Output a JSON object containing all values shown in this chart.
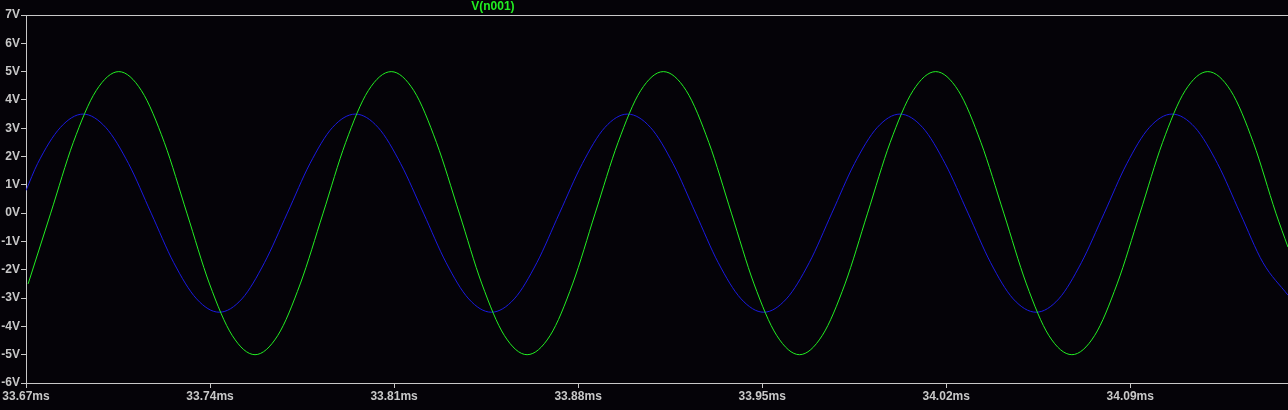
{
  "chart_data": {
    "type": "line",
    "legend": "top",
    "xlim": [
      33.67,
      34.15
    ],
    "ylim": [
      -6,
      7
    ],
    "xticks": [
      {
        "value": 33.67,
        "label": "33.67ms"
      },
      {
        "value": 33.74,
        "label": "33.74ms"
      },
      {
        "value": 33.81,
        "label": "33.81ms"
      },
      {
        "value": 33.88,
        "label": "33.88ms"
      },
      {
        "value": 33.95,
        "label": "33.95ms"
      },
      {
        "value": 34.02,
        "label": "34.02ms"
      },
      {
        "value": 34.09,
        "label": "34.09ms"
      }
    ],
    "yticks": [
      {
        "value": 7,
        "label": "7V"
      },
      {
        "value": 6,
        "label": "6V"
      },
      {
        "value": 5,
        "label": "5V"
      },
      {
        "value": 4,
        "label": "4V"
      },
      {
        "value": 3,
        "label": "3V"
      },
      {
        "value": 2,
        "label": "2V"
      },
      {
        "value": 1,
        "label": "1V"
      },
      {
        "value": 0,
        "label": "0V"
      },
      {
        "value": -1,
        "label": "-1V"
      },
      {
        "value": -2,
        "label": "-2V"
      },
      {
        "value": -3,
        "label": "-3V"
      },
      {
        "value": -4,
        "label": "-4V"
      },
      {
        "value": -5,
        "label": "-5V"
      },
      {
        "value": -6,
        "label": "-6V"
      }
    ],
    "series": [
      {
        "name": "V(n001)",
        "color": "#22ee22",
        "x": [
          33.6708,
          33.6794,
          33.688,
          33.6967,
          33.7053,
          33.7139,
          33.7226,
          33.7312,
          33.7398,
          33.7485,
          33.7571,
          33.7657,
          33.7743,
          33.783,
          33.7916,
          33.8002,
          33.8089,
          33.8175,
          33.8261,
          33.8348,
          33.8434,
          33.852,
          33.8606,
          33.8693,
          33.8779,
          33.8865,
          33.8952,
          33.9038,
          33.9124,
          33.9211,
          33.9297,
          33.9383,
          33.9469,
          33.9556,
          33.9642,
          33.9728,
          33.9815,
          33.9901,
          33.9987,
          34.0074,
          34.016,
          34.0246,
          34.0332,
          34.0419,
          34.0505,
          34.0591,
          34.0678,
          34.0764,
          34.085,
          34.0937,
          34.1023,
          34.1109,
          34.1195,
          34.1282,
          34.1368,
          34.1454,
          34.15
        ],
        "values": [
          -2.5,
          0,
          2.5,
          4.33,
          5,
          4.33,
          2.5,
          0,
          -2.5,
          -4.33,
          -5,
          -4.33,
          -2.5,
          0,
          2.5,
          4.33,
          5,
          4.33,
          2.5,
          0,
          -2.5,
          -4.33,
          -5,
          -4.33,
          -2.5,
          0,
          2.5,
          4.33,
          5,
          4.33,
          2.5,
          0,
          -2.5,
          -4.33,
          -5,
          -4.33,
          -2.5,
          0,
          2.5,
          4.33,
          5,
          4.33,
          2.5,
          0,
          -2.5,
          -4.33,
          -5,
          -4.33,
          -2.5,
          0,
          2.5,
          4.33,
          5,
          4.33,
          2.5,
          0,
          -1.2
        ]
      },
      {
        "color": "#1a1ae0",
        "x": [
          33.67,
          33.6744,
          33.6831,
          33.6917,
          33.7003,
          33.709,
          33.7176,
          33.7262,
          33.7349,
          33.7435,
          33.7521,
          33.7607,
          33.7694,
          33.778,
          33.7866,
          33.7953,
          33.8039,
          33.8125,
          33.8212,
          33.8298,
          33.8384,
          33.847,
          33.8557,
          33.8643,
          33.8729,
          33.8816,
          33.8902,
          33.8988,
          33.9075,
          33.9161,
          33.9247,
          33.9333,
          33.942,
          33.9506,
          33.9592,
          33.9679,
          33.9765,
          33.9851,
          33.9938,
          34.0024,
          34.011,
          34.0196,
          34.0283,
          34.0369,
          34.0455,
          34.0542,
          34.0628,
          34.0714,
          34.0801,
          34.0887,
          34.0973,
          34.1059,
          34.1146,
          34.1232,
          34.1318,
          34.1405,
          34.15
        ],
        "values": [
          0.8,
          1.75,
          3.03,
          3.5,
          3.03,
          1.75,
          0,
          -1.75,
          -3.03,
          -3.5,
          -3.03,
          -1.75,
          0,
          1.75,
          3.03,
          3.5,
          3.03,
          1.75,
          0,
          -1.75,
          -3.03,
          -3.5,
          -3.03,
          -1.75,
          0,
          1.75,
          3.03,
          3.5,
          3.03,
          1.75,
          0,
          -1.75,
          -3.03,
          -3.5,
          -3.03,
          -1.75,
          0,
          1.75,
          3.03,
          3.5,
          3.03,
          1.75,
          0,
          -1.75,
          -3.03,
          -3.5,
          -3.03,
          -1.75,
          0,
          1.75,
          3.03,
          3.5,
          3.03,
          1.75,
          0,
          -1.75,
          -2.9
        ]
      }
    ]
  }
}
